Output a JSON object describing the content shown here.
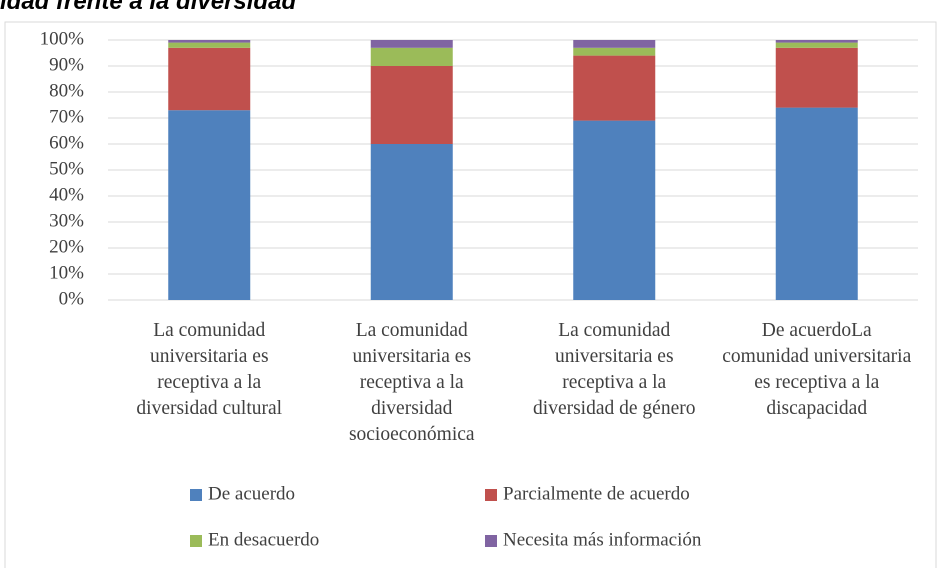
{
  "chart_data": {
    "type": "stacked_bar",
    "title": "idad frente a la diversidad",
    "categories": [
      "La comunidad universitaria es receptiva a la diversidad cultural",
      "La comunidad universitaria es receptiva a la diversidad socioeconómica",
      "La comunidad universitaria es receptiva a la diversidad de género",
      "De acuerdoLa comunidad universitaria es receptiva a la discapacidad"
    ],
    "series": [
      {
        "name": "De acuerdo",
        "color": "#4f81bd",
        "values": [
          73,
          60,
          69,
          74
        ]
      },
      {
        "name": "Parcialmente de acuerdo",
        "color": "#c0504d",
        "values": [
          24,
          30,
          25,
          23
        ]
      },
      {
        "name": "En desacuerdo",
        "color": "#9bbb59",
        "values": [
          2,
          7,
          3,
          2
        ]
      },
      {
        "name": "Necesita más información",
        "color": "#8064a2",
        "values": [
          1,
          3,
          3,
          1
        ]
      }
    ],
    "ylim": [
      0,
      100
    ],
    "yticks": [
      {
        "value": 0,
        "label": "0%"
      },
      {
        "value": 10,
        "label": "10%"
      },
      {
        "value": 20,
        "label": "20%"
      },
      {
        "value": 30,
        "label": "30%"
      },
      {
        "value": 40,
        "label": "40%"
      },
      {
        "value": 50,
        "label": "50%"
      },
      {
        "value": 60,
        "label": "60%"
      },
      {
        "value": 70,
        "label": "70%"
      },
      {
        "value": 80,
        "label": "80%"
      },
      {
        "value": 90,
        "label": "90%"
      },
      {
        "value": 100,
        "label": "100%"
      }
    ],
    "grid": true,
    "legend": "bottom"
  }
}
